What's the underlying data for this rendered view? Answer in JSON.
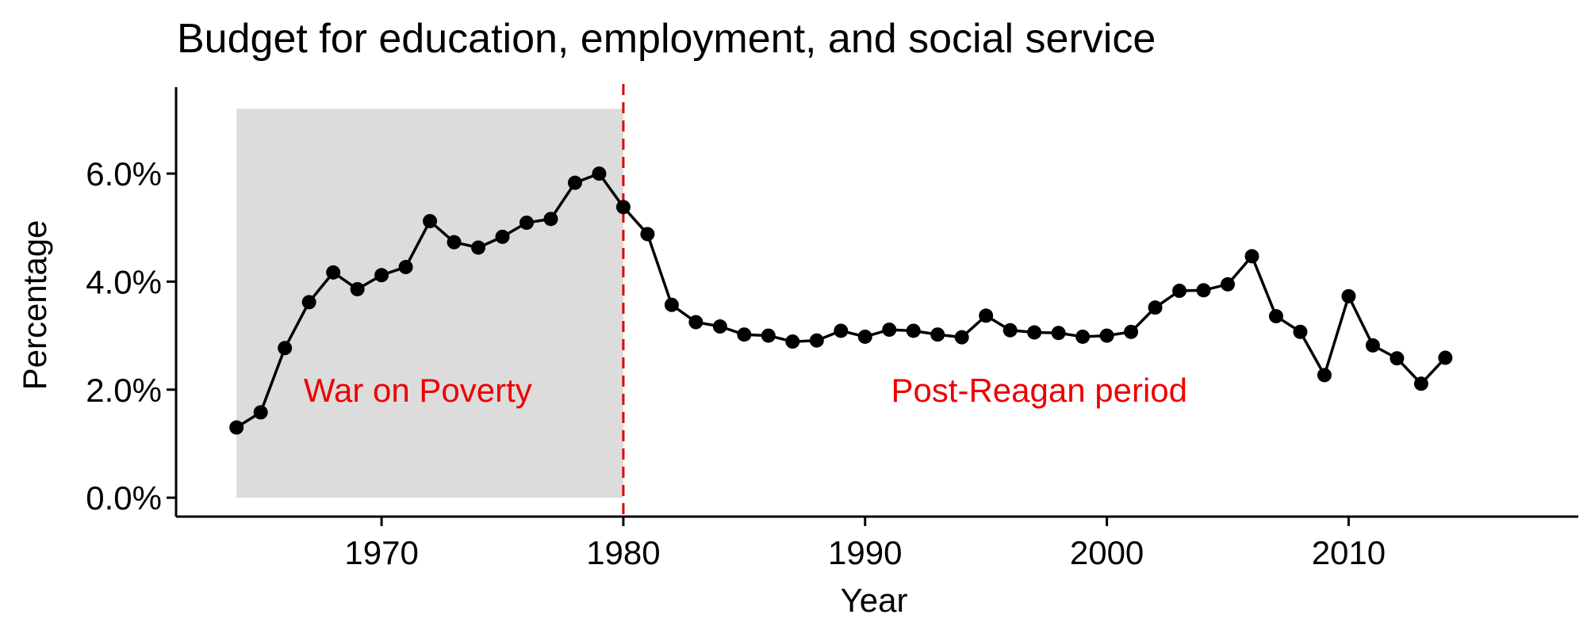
{
  "chart_data": {
    "type": "line",
    "title": "Budget for education, employment, and social service",
    "xlabel": "Year",
    "ylabel": "Percentage",
    "xlim": [
      1961.5,
      2019.5
    ],
    "ylim": [
      -0.35,
      7.6
    ],
    "x_ticks": [
      1970,
      1980,
      1990,
      2000,
      2010
    ],
    "x_tick_labels": [
      "1970",
      "1980",
      "1990",
      "2000",
      "2010"
    ],
    "y_ticks": [
      0,
      2,
      4,
      6
    ],
    "y_tick_labels": [
      "0.0%",
      "2.0%",
      "4.0%",
      "6.0%"
    ],
    "grid": false,
    "legend": "none",
    "colors": {
      "line": "#000000",
      "point": "#000000",
      "shade": "#dcdcdc",
      "vline": "#dd0000",
      "annotation": "#ee0000"
    },
    "shaded_region": {
      "x": [
        1964,
        1980
      ],
      "y": [
        0,
        7.2
      ]
    },
    "vline": {
      "x": 1980,
      "style": "dashed"
    },
    "annotations": [
      {
        "text": "War on Poverty",
        "x": 1971.5,
        "y": 2.0
      },
      {
        "text": "Post-Reagan period",
        "x": 1997.2,
        "y": 2.0
      }
    ],
    "series": [
      {
        "x": [
          1964,
          1965,
          1966,
          1967,
          1968,
          1969,
          1970,
          1971,
          1972,
          1973,
          1974,
          1975,
          1976,
          1977,
          1978,
          1979,
          1980,
          1981,
          1982,
          1983,
          1984,
          1985,
          1986,
          1987,
          1988,
          1989,
          1990,
          1991,
          1992,
          1993,
          1994,
          1995,
          1996,
          1997,
          1998,
          1999,
          2000,
          2001,
          2002,
          2003,
          2004,
          2005,
          2006,
          2007,
          2008,
          2009,
          2010,
          2011,
          2012,
          2013,
          2014
        ],
        "values": [
          1.3,
          1.58,
          2.77,
          3.62,
          4.17,
          3.86,
          4.12,
          4.27,
          5.12,
          4.73,
          4.63,
          4.83,
          5.09,
          5.16,
          5.83,
          6.0,
          5.38,
          4.88,
          3.57,
          3.25,
          3.17,
          3.02,
          3.0,
          2.89,
          2.91,
          3.09,
          2.98,
          3.11,
          3.09,
          3.02,
          2.97,
          3.37,
          3.1,
          3.06,
          3.05,
          2.98,
          3.0,
          3.07,
          3.52,
          3.83,
          3.84,
          3.95,
          4.47,
          3.36,
          3.07,
          2.27,
          3.73,
          2.82,
          2.58,
          2.11,
          2.59
        ]
      }
    ]
  }
}
